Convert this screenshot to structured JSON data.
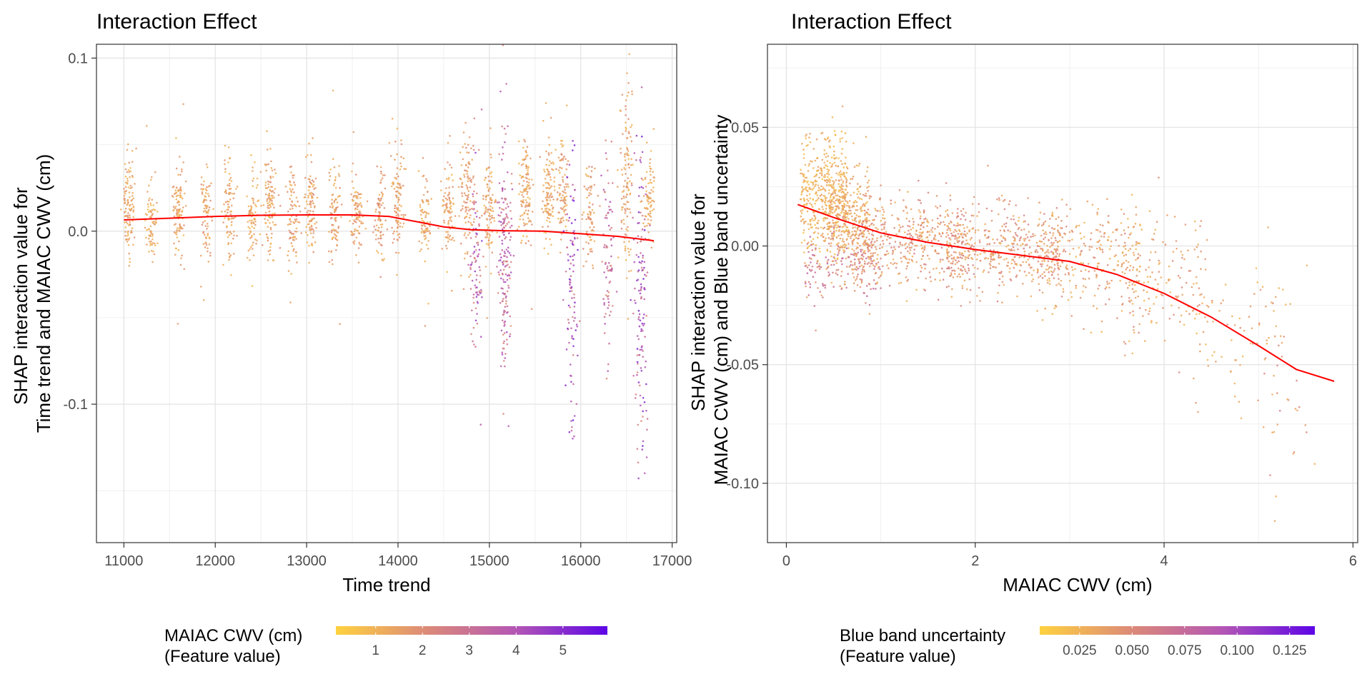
{
  "chart_data": [
    {
      "type": "scatter",
      "title": "Interaction Effect",
      "xlabel": "Time trend",
      "ylabel": [
        "SHAP interaction value for",
        "Time trend and MAIAC CWV (cm)"
      ],
      "xlim": [
        10700,
        17050
      ],
      "ylim": [
        -0.18,
        0.108
      ],
      "xticks": [
        11000,
        12000,
        13000,
        14000,
        15000,
        16000,
        17000
      ],
      "xtick_labels": [
        "11000",
        "12000",
        "13000",
        "14000",
        "15000",
        "16000",
        "17000"
      ],
      "yticks": [
        -0.1,
        0.0,
        0.1
      ],
      "ytick_labels": [
        "-0.1",
        "0.0",
        "0.1"
      ],
      "grid": true,
      "legend": {
        "placement": "bottom",
        "title": [
          "MAIAC CWV (cm)",
          "(Feature value)"
        ],
        "range": [
          0.15,
          5.95
        ],
        "ticks": [
          1,
          2,
          3,
          4,
          5
        ],
        "tick_labels": [
          "1",
          "2",
          "3",
          "4",
          "5"
        ],
        "colors": [
          "#ffd23f",
          "#dc8a78",
          "#b356b5",
          "#5d05e6"
        ]
      },
      "smooth_line": {
        "color": "#ff0000",
        "x": [
          11000,
          11500,
          12000,
          12500,
          13000,
          13500,
          13900,
          14200,
          14500,
          14800,
          15200,
          15600,
          16000,
          16400,
          16800
        ],
        "y": [
          0.0065,
          0.0075,
          0.0085,
          0.0092,
          0.0094,
          0.0094,
          0.0085,
          0.0055,
          0.0025,
          0.0008,
          0.0002,
          0.0,
          -0.0015,
          -0.003,
          -0.0055
        ]
      },
      "point_clusters": [
        {
          "x": 11050,
          "mean": 0.014,
          "sd": 0.014,
          "n": 110,
          "color_mean": 1.3
        },
        {
          "x": 11300,
          "mean": 0.006,
          "sd": 0.011,
          "n": 75,
          "color_mean": 1.2
        },
        {
          "x": 11600,
          "mean": 0.012,
          "sd": 0.013,
          "n": 110,
          "color_mean": 1.3
        },
        {
          "x": 11900,
          "mean": 0.009,
          "sd": 0.012,
          "n": 80,
          "color_mean": 1.4
        },
        {
          "x": 12150,
          "mean": 0.012,
          "sd": 0.013,
          "n": 90,
          "color_mean": 1.3
        },
        {
          "x": 12400,
          "mean": 0.008,
          "sd": 0.014,
          "n": 80,
          "color_mean": 1.2
        },
        {
          "x": 12600,
          "mean": 0.016,
          "sd": 0.015,
          "n": 110,
          "color_mean": 1.3
        },
        {
          "x": 12850,
          "mean": 0.01,
          "sd": 0.013,
          "n": 85,
          "color_mean": 1.4
        },
        {
          "x": 13050,
          "mean": 0.014,
          "sd": 0.014,
          "n": 100,
          "color_mean": 1.4
        },
        {
          "x": 13300,
          "mean": 0.01,
          "sd": 0.013,
          "n": 90,
          "color_mean": 1.4
        },
        {
          "x": 13550,
          "mean": 0.011,
          "sd": 0.012,
          "n": 90,
          "color_mean": 1.4
        },
        {
          "x": 13800,
          "mean": 0.008,
          "sd": 0.013,
          "n": 80,
          "color_mean": 1.5
        },
        {
          "x": 14000,
          "mean": 0.015,
          "sd": 0.016,
          "n": 100,
          "color_mean": 1.4
        },
        {
          "x": 14300,
          "mean": 0.005,
          "sd": 0.012,
          "n": 80,
          "color_mean": 1.3
        },
        {
          "x": 14550,
          "mean": 0.014,
          "sd": 0.014,
          "n": 90,
          "color_mean": 1.3
        },
        {
          "x": 14750,
          "mean": 0.02,
          "sd": 0.02,
          "n": 110,
          "color_mean": 1.5
        },
        {
          "x": 14850,
          "mean": -0.015,
          "sd": 0.022,
          "n": 90,
          "color_mean": 3.2
        },
        {
          "x": 15000,
          "mean": 0.012,
          "sd": 0.014,
          "n": 100,
          "color_mean": 1.3
        },
        {
          "x": 15170,
          "mean": -0.01,
          "sd": 0.03,
          "n": 180,
          "color_mean": 3.0
        },
        {
          "x": 15400,
          "mean": 0.02,
          "sd": 0.014,
          "n": 120,
          "color_mean": 1.3
        },
        {
          "x": 15650,
          "mean": 0.022,
          "sd": 0.013,
          "n": 110,
          "color_mean": 1.3
        },
        {
          "x": 15800,
          "mean": 0.025,
          "sd": 0.015,
          "n": 90,
          "color_mean": 1.4
        },
        {
          "x": 15900,
          "mean": -0.04,
          "sd": 0.045,
          "n": 100,
          "color_mean": 3.7
        },
        {
          "x": 16100,
          "mean": 0.01,
          "sd": 0.015,
          "n": 80,
          "color_mean": 1.5
        },
        {
          "x": 16300,
          "mean": -0.015,
          "sd": 0.03,
          "n": 80,
          "color_mean": 2.8
        },
        {
          "x": 16500,
          "mean": 0.03,
          "sd": 0.025,
          "n": 120,
          "color_mean": 1.4
        },
        {
          "x": 16650,
          "mean": -0.04,
          "sd": 0.045,
          "n": 140,
          "color_mean": 3.6
        },
        {
          "x": 16750,
          "mean": 0.018,
          "sd": 0.012,
          "n": 80,
          "color_mean": 1.2
        }
      ]
    },
    {
      "type": "scatter",
      "title": "Interaction Effect",
      "xlabel": "MAIAC CWV (cm)",
      "ylabel": [
        "SHAP interaction value for",
        "MAIAC CWV (cm) and Blue band uncertainty"
      ],
      "xlim": [
        -0.2,
        6.05
      ],
      "ylim": [
        -0.125,
        0.085
      ],
      "xticks": [
        0,
        2,
        4,
        6
      ],
      "xtick_labels": [
        "0",
        "2",
        "4",
        "6"
      ],
      "yticks": [
        -0.1,
        -0.05,
        0.0,
        0.05
      ],
      "ytick_labels": [
        "-0.10",
        "-0.05",
        "0.00",
        "0.05"
      ],
      "grid": true,
      "legend": {
        "placement": "bottom",
        "title": [
          "Blue band uncertainty",
          "(Feature value)"
        ],
        "range": [
          0.006,
          0.137
        ],
        "ticks": [
          0.025,
          0.05,
          0.075,
          0.1,
          0.125
        ],
        "tick_labels": [
          "0.025",
          "0.050",
          "0.075",
          "0.100",
          "0.125"
        ],
        "colors": [
          "#ffd23f",
          "#dc8a78",
          "#b356b5",
          "#5d05e6"
        ]
      },
      "smooth_line": {
        "color": "#ff0000",
        "x": [
          0.12,
          0.5,
          1.0,
          1.5,
          2.0,
          2.5,
          3.0,
          3.5,
          4.0,
          4.5,
          5.0,
          5.4,
          5.8
        ],
        "y": [
          0.0175,
          0.012,
          0.0055,
          0.0015,
          -0.0015,
          -0.004,
          -0.0065,
          -0.012,
          -0.02,
          -0.03,
          -0.042,
          -0.052,
          -0.057
        ]
      },
      "point_clusters": [
        {
          "x": 0.4,
          "spread": 0.25,
          "mean": 0.022,
          "sd": 0.012,
          "n": 450,
          "color_mean": 0.025
        },
        {
          "x": 0.65,
          "spread": 0.25,
          "mean": 0.012,
          "sd": 0.011,
          "n": 300,
          "color_mean": 0.03
        },
        {
          "x": 0.6,
          "spread": 0.4,
          "mean": -0.008,
          "sd": 0.008,
          "n": 200,
          "color_mean": 0.055
        },
        {
          "x": 1.3,
          "spread": 0.6,
          "mean": 0.003,
          "sd": 0.009,
          "n": 500,
          "color_mean": 0.04
        },
        {
          "x": 2.3,
          "spread": 0.6,
          "mean": -0.002,
          "sd": 0.009,
          "n": 450,
          "color_mean": 0.04
        },
        {
          "x": 3.2,
          "spread": 0.55,
          "mean": -0.006,
          "sd": 0.012,
          "n": 300,
          "color_mean": 0.035
        },
        {
          "x": 4.0,
          "spread": 0.45,
          "mean": -0.015,
          "sd": 0.016,
          "n": 150,
          "color_mean": 0.035
        },
        {
          "x": 4.8,
          "spread": 0.5,
          "mean": -0.035,
          "sd": 0.022,
          "n": 80,
          "color_mean": 0.035
        },
        {
          "x": 5.35,
          "spread": 0.25,
          "mean": -0.06,
          "sd": 0.025,
          "n": 25,
          "color_mean": 0.04
        }
      ]
    }
  ]
}
